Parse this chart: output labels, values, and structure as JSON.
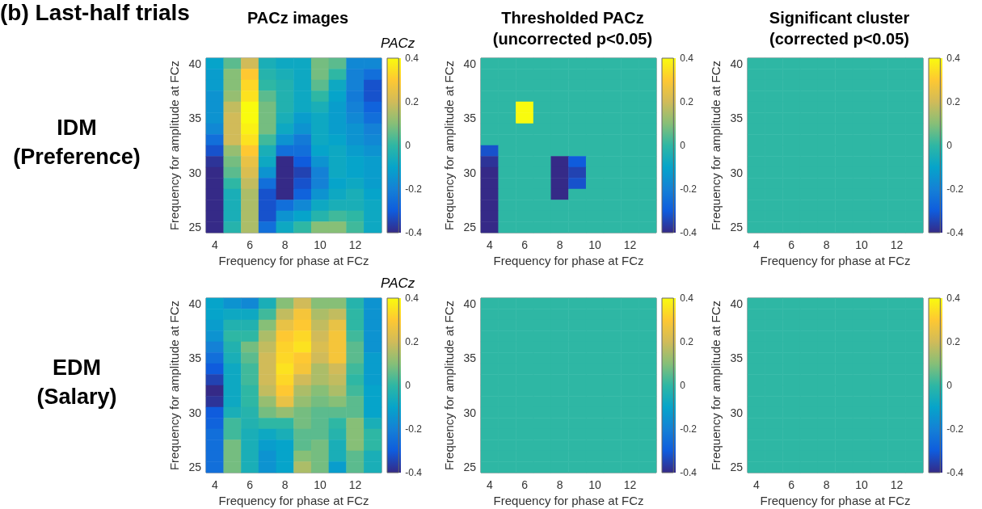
{
  "chart_data": [
    {
      "type": "heatmap",
      "title": "PACz images",
      "xlabel": "Frequency for phase at FCz",
      "ylabel": "Frequency for amplitude at FCz",
      "clabel": "PACz",
      "annotations": [
        "(b) Last-half trials",
        "IDM\n(Preference)"
      ],
      "categories": [
        "4",
        null,
        "6",
        null,
        "8",
        null,
        "10",
        null,
        "12",
        null
      ],
      "y_categories": [
        "40",
        null,
        null,
        null,
        null,
        "35",
        null,
        null,
        null,
        null,
        "30",
        null,
        null,
        null,
        null,
        "25"
      ],
      "clim": [
        -0.4,
        0.4
      ],
      "cticks": [
        -0.4,
        -0.2,
        0,
        0.2,
        0.4
      ],
      "cells": [
        [
          -0.1,
          0.05,
          0.2,
          -0.05,
          -0.08,
          -0.08,
          0.08,
          0.05,
          -0.18,
          -0.18
        ],
        [
          -0.12,
          0.1,
          0.3,
          -0.02,
          -0.05,
          -0.08,
          0.08,
          0,
          -0.2,
          -0.25
        ],
        [
          -0.12,
          0.1,
          0.33,
          0,
          -0.03,
          -0.08,
          0.05,
          -0.08,
          -0.2,
          -0.32
        ],
        [
          -0.15,
          0.12,
          0.35,
          0.05,
          -0.03,
          -0.08,
          0,
          -0.1,
          -0.22,
          -0.32
        ],
        [
          -0.15,
          0.18,
          0.4,
          0.08,
          -0.03,
          -0.08,
          -0.05,
          -0.12,
          -0.2,
          -0.28
        ],
        [
          -0.15,
          0.2,
          0.4,
          0.08,
          -0.05,
          -0.12,
          -0.08,
          -0.12,
          -0.18,
          -0.25
        ],
        [
          -0.18,
          0.2,
          0.38,
          0.08,
          -0.08,
          -0.15,
          -0.08,
          -0.12,
          -0.15,
          -0.2
        ],
        [
          -0.25,
          0.2,
          0.35,
          0.02,
          -0.15,
          -0.22,
          -0.08,
          -0.1,
          -0.15,
          -0.18
        ],
        [
          -0.32,
          0.12,
          0.3,
          -0.05,
          -0.25,
          -0.25,
          -0.1,
          -0.08,
          -0.12,
          -0.15
        ],
        [
          -0.38,
          0.08,
          0.25,
          -0.08,
          -0.4,
          -0.3,
          -0.15,
          -0.08,
          -0.1,
          -0.12
        ],
        [
          -0.4,
          0.05,
          0.22,
          -0.15,
          -0.4,
          -0.35,
          -0.2,
          -0.08,
          -0.1,
          -0.12
        ],
        [
          -0.4,
          0,
          0.18,
          -0.25,
          -0.4,
          -0.32,
          -0.2,
          -0.1,
          -0.08,
          -0.12
        ],
        [
          -0.4,
          -0.05,
          0.15,
          -0.32,
          -0.4,
          -0.28,
          -0.15,
          -0.08,
          -0.05,
          -0.1
        ],
        [
          -0.4,
          -0.05,
          0.15,
          -0.32,
          -0.25,
          -0.18,
          -0.08,
          -0.05,
          -0.05,
          -0.08
        ],
        [
          -0.4,
          -0.05,
          0.15,
          -0.32,
          -0.15,
          -0.1,
          -0.02,
          0.02,
          0,
          -0.08
        ],
        [
          -0.4,
          -0.02,
          0.15,
          -0.25,
          -0.08,
          0,
          0.1,
          0.1,
          0.02,
          -0.08
        ]
      ]
    },
    {
      "type": "heatmap",
      "title": "Thresholded PACz\n(uncorrected p<0.05)",
      "xlabel": "Frequency for phase at FCz",
      "ylabel": "Frequency for amplitude at FCz",
      "categories": [
        "4",
        null,
        "6",
        null,
        "8",
        null,
        "10",
        null,
        "12",
        null
      ],
      "y_categories": [
        "40",
        null,
        null,
        null,
        null,
        "35",
        null,
        null,
        null,
        null,
        "30",
        null,
        null,
        null,
        null,
        "25"
      ],
      "clim": [
        -0.4,
        0.4
      ],
      "cticks": [
        -0.4,
        -0.2,
        0,
        0.2,
        0.4
      ],
      "cells": [
        [
          0,
          0,
          0,
          0,
          0,
          0,
          0,
          0,
          0,
          0
        ],
        [
          0,
          0,
          0,
          0,
          0,
          0,
          0,
          0,
          0,
          0
        ],
        [
          0,
          0,
          0,
          0,
          0,
          0,
          0,
          0,
          0,
          0
        ],
        [
          0,
          0,
          0,
          0,
          0,
          0,
          0,
          0,
          0,
          0
        ],
        [
          0,
          0,
          0.4,
          0,
          0,
          0,
          0,
          0,
          0,
          0
        ],
        [
          0,
          0,
          0.4,
          0,
          0,
          0,
          0,
          0,
          0,
          0
        ],
        [
          0,
          0,
          0,
          0,
          0,
          0,
          0,
          0,
          0,
          0
        ],
        [
          0,
          0,
          0,
          0,
          0,
          0,
          0,
          0,
          0,
          0
        ],
        [
          -0.32,
          0,
          0,
          0,
          0,
          0,
          0,
          0,
          0,
          0
        ],
        [
          -0.38,
          0,
          0,
          0,
          -0.4,
          -0.3,
          0,
          0,
          0,
          0
        ],
        [
          -0.4,
          0,
          0,
          0,
          -0.4,
          -0.35,
          0,
          0,
          0,
          0
        ],
        [
          -0.4,
          0,
          0,
          0,
          -0.4,
          -0.32,
          0,
          0,
          0,
          0
        ],
        [
          -0.4,
          0,
          0,
          0,
          -0.4,
          0,
          0,
          0,
          0,
          0
        ],
        [
          -0.4,
          0,
          0,
          0,
          0,
          0,
          0,
          0,
          0,
          0
        ],
        [
          -0.4,
          0,
          0,
          0,
          0,
          0,
          0,
          0,
          0,
          0
        ],
        [
          -0.4,
          0,
          0,
          0,
          0,
          0,
          0,
          0,
          0,
          0
        ]
      ]
    },
    {
      "type": "heatmap",
      "title": "Significant cluster\n(corrected p<0.05)",
      "xlabel": "Frequency for phase at FCz",
      "ylabel": "Frequency for amplitude at FCz",
      "categories": [
        "4",
        null,
        "6",
        null,
        "8",
        null,
        "10",
        null,
        "12",
        null
      ],
      "y_categories": [
        "40",
        null,
        null,
        null,
        null,
        "35",
        null,
        null,
        null,
        null,
        "30",
        null,
        null,
        null,
        null,
        "25"
      ],
      "clim": [
        -0.4,
        0.4
      ],
      "cticks": [
        -0.4,
        -0.2,
        0,
        0.2,
        0.4
      ],
      "cells": [
        [
          0,
          0,
          0,
          0,
          0,
          0,
          0,
          0,
          0,
          0
        ],
        [
          0,
          0,
          0,
          0,
          0,
          0,
          0,
          0,
          0,
          0
        ],
        [
          0,
          0,
          0,
          0,
          0,
          0,
          0,
          0,
          0,
          0
        ],
        [
          0,
          0,
          0,
          0,
          0,
          0,
          0,
          0,
          0,
          0
        ],
        [
          0,
          0,
          0,
          0,
          0,
          0,
          0,
          0,
          0,
          0
        ],
        [
          0,
          0,
          0,
          0,
          0,
          0,
          0,
          0,
          0,
          0
        ],
        [
          0,
          0,
          0,
          0,
          0,
          0,
          0,
          0,
          0,
          0
        ],
        [
          0,
          0,
          0,
          0,
          0,
          0,
          0,
          0,
          0,
          0
        ],
        [
          0,
          0,
          0,
          0,
          0,
          0,
          0,
          0,
          0,
          0
        ],
        [
          0,
          0,
          0,
          0,
          0,
          0,
          0,
          0,
          0,
          0
        ],
        [
          0,
          0,
          0,
          0,
          0,
          0,
          0,
          0,
          0,
          0
        ],
        [
          0,
          0,
          0,
          0,
          0,
          0,
          0,
          0,
          0,
          0
        ],
        [
          0,
          0,
          0,
          0,
          0,
          0,
          0,
          0,
          0,
          0
        ],
        [
          0,
          0,
          0,
          0,
          0,
          0,
          0,
          0,
          0,
          0
        ],
        [
          0,
          0,
          0,
          0,
          0,
          0,
          0,
          0,
          0,
          0
        ],
        [
          0,
          0,
          0,
          0,
          0,
          0,
          0,
          0,
          0,
          0
        ]
      ]
    },
    {
      "type": "heatmap",
      "xlabel": "Frequency for phase at FCz",
      "ylabel": "Frequency for amplitude at FCz",
      "clabel": "PACz",
      "annotations": [
        "EDM\n(Salary)"
      ],
      "categories": [
        "4",
        null,
        "6",
        null,
        "8",
        null,
        "10",
        null,
        "12",
        null
      ],
      "y_categories": [
        "40",
        null,
        null,
        null,
        null,
        "35",
        null,
        null,
        null,
        null,
        "30",
        null,
        null,
        null,
        null,
        "25"
      ],
      "clim": [
        -0.4,
        0.4
      ],
      "cticks": [
        -0.4,
        -0.2,
        0,
        0.2,
        0.4
      ],
      "cells": [
        [
          -0.1,
          -0.15,
          -0.18,
          -0.05,
          0.1,
          0.2,
          0.1,
          0.1,
          -0.02,
          -0.15
        ],
        [
          -0.1,
          -0.08,
          -0.08,
          0.02,
          0.18,
          0.28,
          0.15,
          0.18,
          0,
          -0.15
        ],
        [
          -0.12,
          -0.03,
          -0.03,
          0.1,
          0.25,
          0.3,
          0.18,
          0.25,
          0,
          -0.15
        ],
        [
          -0.15,
          0,
          0,
          0.15,
          0.3,
          0.33,
          0.2,
          0.28,
          0.02,
          -0.15
        ],
        [
          -0.2,
          -0.03,
          0.08,
          0.18,
          0.32,
          0.35,
          0.22,
          0.28,
          0.05,
          -0.15
        ],
        [
          -0.25,
          -0.05,
          0.05,
          0.2,
          0.33,
          0.3,
          0.2,
          0.28,
          0.05,
          -0.12
        ],
        [
          -0.3,
          -0.08,
          0.02,
          0.2,
          0.35,
          0.28,
          0.15,
          0.2,
          0.02,
          -0.12
        ],
        [
          -0.35,
          -0.08,
          0.02,
          0.2,
          0.33,
          0.2,
          0.15,
          0.18,
          0,
          -0.12
        ],
        [
          -0.4,
          -0.08,
          0,
          0.18,
          0.3,
          0.15,
          0.1,
          0.15,
          0.02,
          -0.1
        ],
        [
          -0.38,
          -0.08,
          0,
          0.12,
          0.25,
          0.12,
          0.08,
          0.1,
          0.05,
          -0.1
        ],
        [
          -0.3,
          -0.05,
          -0.02,
          0.08,
          0.12,
          0.08,
          0.05,
          0.05,
          0.05,
          -0.1
        ],
        [
          -0.28,
          0.02,
          -0.03,
          0,
          0,
          0.08,
          0.05,
          0,
          0.1,
          -0.05
        ],
        [
          -0.25,
          0.02,
          -0.05,
          -0.08,
          -0.05,
          0.05,
          0.05,
          -0.02,
          0.1,
          0
        ],
        [
          -0.25,
          0.08,
          -0.05,
          -0.12,
          -0.1,
          0.05,
          0.08,
          -0.05,
          0.1,
          0
        ],
        [
          -0.25,
          0.08,
          -0.05,
          -0.15,
          -0.1,
          0.1,
          0.08,
          -0.05,
          0.05,
          -0.05
        ],
        [
          -0.25,
          0.08,
          -0.05,
          -0.15,
          -0.1,
          0.15,
          0.08,
          -0.12,
          0.05,
          -0.05
        ]
      ]
    },
    {
      "type": "heatmap",
      "xlabel": "Frequency for phase at FCz",
      "ylabel": "Frequency for amplitude at FCz",
      "categories": [
        "4",
        null,
        "6",
        null,
        "8",
        null,
        "10",
        null,
        "12",
        null
      ],
      "y_categories": [
        "40",
        null,
        null,
        null,
        null,
        "35",
        null,
        null,
        null,
        null,
        "30",
        null,
        null,
        null,
        null,
        "25"
      ],
      "clim": [
        -0.4,
        0.4
      ],
      "cticks": [
        -0.4,
        -0.2,
        0,
        0.2,
        0.4
      ],
      "cells": [
        [
          0,
          0,
          0,
          0,
          0,
          0,
          0,
          0,
          0,
          0
        ],
        [
          0,
          0,
          0,
          0,
          0,
          0,
          0,
          0,
          0,
          0
        ],
        [
          0,
          0,
          0,
          0,
          0,
          0,
          0,
          0,
          0,
          0
        ],
        [
          0,
          0,
          0,
          0,
          0,
          0,
          0,
          0,
          0,
          0
        ],
        [
          0,
          0,
          0,
          0,
          0,
          0,
          0,
          0,
          0,
          0
        ],
        [
          0,
          0,
          0,
          0,
          0,
          0,
          0,
          0,
          0,
          0
        ],
        [
          0,
          0,
          0,
          0,
          0,
          0,
          0,
          0,
          0,
          0
        ],
        [
          0,
          0,
          0,
          0,
          0,
          0,
          0,
          0,
          0,
          0
        ],
        [
          0,
          0,
          0,
          0,
          0,
          0,
          0,
          0,
          0,
          0
        ],
        [
          0,
          0,
          0,
          0,
          0,
          0,
          0,
          0,
          0,
          0
        ],
        [
          0,
          0,
          0,
          0,
          0,
          0,
          0,
          0,
          0,
          0
        ],
        [
          0,
          0,
          0,
          0,
          0,
          0,
          0,
          0,
          0,
          0
        ],
        [
          0,
          0,
          0,
          0,
          0,
          0,
          0,
          0,
          0,
          0
        ],
        [
          0,
          0,
          0,
          0,
          0,
          0,
          0,
          0,
          0,
          0
        ],
        [
          0,
          0,
          0,
          0,
          0,
          0,
          0,
          0,
          0,
          0
        ],
        [
          0,
          0,
          0,
          0,
          0,
          0,
          0,
          0,
          0,
          0
        ]
      ]
    },
    {
      "type": "heatmap",
      "xlabel": "Frequency for phase at FCz",
      "ylabel": "Frequency for amplitude at FCz",
      "categories": [
        "4",
        null,
        "6",
        null,
        "8",
        null,
        "10",
        null,
        "12",
        null
      ],
      "y_categories": [
        "40",
        null,
        null,
        null,
        null,
        "35",
        null,
        null,
        null,
        null,
        "30",
        null,
        null,
        null,
        null,
        "25"
      ],
      "clim": [
        -0.4,
        0.4
      ],
      "cticks": [
        -0.4,
        -0.2,
        0,
        0.2,
        0.4
      ],
      "cells": [
        [
          0,
          0,
          0,
          0,
          0,
          0,
          0,
          0,
          0,
          0
        ],
        [
          0,
          0,
          0,
          0,
          0,
          0,
          0,
          0,
          0,
          0
        ],
        [
          0,
          0,
          0,
          0,
          0,
          0,
          0,
          0,
          0,
          0
        ],
        [
          0,
          0,
          0,
          0,
          0,
          0,
          0,
          0,
          0,
          0
        ],
        [
          0,
          0,
          0,
          0,
          0,
          0,
          0,
          0,
          0,
          0
        ],
        [
          0,
          0,
          0,
          0,
          0,
          0,
          0,
          0,
          0,
          0
        ],
        [
          0,
          0,
          0,
          0,
          0,
          0,
          0,
          0,
          0,
          0
        ],
        [
          0,
          0,
          0,
          0,
          0,
          0,
          0,
          0,
          0,
          0
        ],
        [
          0,
          0,
          0,
          0,
          0,
          0,
          0,
          0,
          0,
          0
        ],
        [
          0,
          0,
          0,
          0,
          0,
          0,
          0,
          0,
          0,
          0
        ],
        [
          0,
          0,
          0,
          0,
          0,
          0,
          0,
          0,
          0,
          0
        ],
        [
          0,
          0,
          0,
          0,
          0,
          0,
          0,
          0,
          0,
          0
        ],
        [
          0,
          0,
          0,
          0,
          0,
          0,
          0,
          0,
          0,
          0
        ],
        [
          0,
          0,
          0,
          0,
          0,
          0,
          0,
          0,
          0,
          0
        ],
        [
          0,
          0,
          0,
          0,
          0,
          0,
          0,
          0,
          0,
          0
        ],
        [
          0,
          0,
          0,
          0,
          0,
          0,
          0,
          0,
          0,
          0
        ]
      ]
    }
  ]
}
